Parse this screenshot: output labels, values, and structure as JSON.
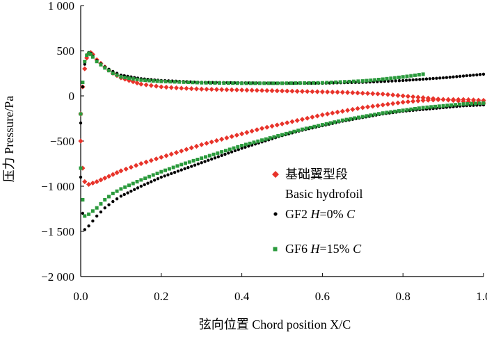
{
  "chart_data": {
    "type": "scatter",
    "xlabel": "弦向位置 Chord position X/C",
    "ylabel": "压力 Pressure/Pa",
    "xlim": [
      0.0,
      1.0
    ],
    "ylim": [
      -2000,
      1000
    ],
    "x_ticks": [
      0.0,
      0.2,
      0.4,
      0.6,
      0.8,
      1.0
    ],
    "x_tick_labels": [
      "0.0",
      "0.2",
      "0.4",
      "0.6",
      "0.8",
      "1.0"
    ],
    "y_ticks": [
      1000,
      500,
      0,
      -500,
      -1000,
      -1500,
      -2000
    ],
    "y_tick_labels": [
      "1 000",
      "500",
      "0",
      "−500",
      "−1 000",
      "−1 500",
      "−2 000"
    ],
    "legend_position": "right",
    "series": [
      {
        "name": "基础翼型段",
        "name_en": "Basic hydrofoil",
        "marker": "diamond",
        "color": "#e8332a",
        "upper": [
          [
            0.0,
            -200
          ],
          [
            0.005,
            100
          ],
          [
            0.01,
            300
          ],
          [
            0.015,
            420
          ],
          [
            0.02,
            470
          ],
          [
            0.025,
            480
          ],
          [
            0.03,
            460
          ],
          [
            0.04,
            400
          ],
          [
            0.06,
            320
          ],
          [
            0.08,
            250
          ],
          [
            0.1,
            200
          ],
          [
            0.12,
            170
          ],
          [
            0.15,
            130
          ],
          [
            0.2,
            100
          ],
          [
            0.25,
            85
          ],
          [
            0.3,
            75
          ],
          [
            0.35,
            70
          ],
          [
            0.4,
            65
          ],
          [
            0.45,
            60
          ],
          [
            0.5,
            55
          ],
          [
            0.55,
            50
          ],
          [
            0.6,
            45
          ],
          [
            0.65,
            40
          ],
          [
            0.7,
            30
          ],
          [
            0.75,
            20
          ],
          [
            0.8,
            0
          ],
          [
            0.85,
            -20
          ],
          [
            0.9,
            -40
          ],
          [
            0.95,
            -60
          ],
          [
            1.0,
            -80
          ]
        ],
        "lower": [
          [
            0.0,
            -500
          ],
          [
            0.005,
            -800
          ],
          [
            0.01,
            -950
          ],
          [
            0.02,
            -980
          ],
          [
            0.04,
            -950
          ],
          [
            0.06,
            -910
          ],
          [
            0.08,
            -870
          ],
          [
            0.1,
            -830
          ],
          [
            0.15,
            -750
          ],
          [
            0.2,
            -680
          ],
          [
            0.25,
            -610
          ],
          [
            0.3,
            -540
          ],
          [
            0.35,
            -480
          ],
          [
            0.4,
            -420
          ],
          [
            0.45,
            -360
          ],
          [
            0.5,
            -310
          ],
          [
            0.55,
            -260
          ],
          [
            0.6,
            -210
          ],
          [
            0.65,
            -170
          ],
          [
            0.7,
            -130
          ],
          [
            0.75,
            -100
          ],
          [
            0.8,
            -70
          ],
          [
            0.85,
            -50
          ],
          [
            0.9,
            -40
          ],
          [
            0.95,
            -40
          ],
          [
            1.0,
            -50
          ]
        ]
      },
      {
        "name": "GF2",
        "name_math": "H=0% C",
        "marker": "circle",
        "color": "#000000",
        "upper": [
          [
            0.0,
            -300
          ],
          [
            0.005,
            100
          ],
          [
            0.01,
            350
          ],
          [
            0.015,
            450
          ],
          [
            0.02,
            480
          ],
          [
            0.025,
            470
          ],
          [
            0.03,
            440
          ],
          [
            0.04,
            390
          ],
          [
            0.06,
            320
          ],
          [
            0.08,
            270
          ],
          [
            0.1,
            230
          ],
          [
            0.15,
            190
          ],
          [
            0.2,
            170
          ],
          [
            0.3,
            150
          ],
          [
            0.4,
            145
          ],
          [
            0.5,
            140
          ],
          [
            0.6,
            140
          ],
          [
            0.7,
            150
          ],
          [
            0.8,
            170
          ],
          [
            0.85,
            185
          ],
          [
            0.9,
            200
          ],
          [
            0.95,
            220
          ],
          [
            1.0,
            240
          ]
        ],
        "lower": [
          [
            0.0,
            -900
          ],
          [
            0.005,
            -1300
          ],
          [
            0.01,
            -1480
          ],
          [
            0.02,
            -1440
          ],
          [
            0.04,
            -1330
          ],
          [
            0.06,
            -1240
          ],
          [
            0.08,
            -1170
          ],
          [
            0.1,
            -1110
          ],
          [
            0.15,
            -1000
          ],
          [
            0.2,
            -900
          ],
          [
            0.25,
            -820
          ],
          [
            0.3,
            -740
          ],
          [
            0.35,
            -660
          ],
          [
            0.4,
            -580
          ],
          [
            0.45,
            -510
          ],
          [
            0.5,
            -440
          ],
          [
            0.55,
            -380
          ],
          [
            0.6,
            -330
          ],
          [
            0.65,
            -280
          ],
          [
            0.7,
            -240
          ],
          [
            0.75,
            -200
          ],
          [
            0.8,
            -170
          ],
          [
            0.85,
            -150
          ],
          [
            0.9,
            -130
          ],
          [
            0.95,
            -110
          ],
          [
            1.0,
            -100
          ]
        ]
      },
      {
        "name": "GF6",
        "name_math": "H=15% C",
        "marker": "square",
        "color": "#2a9a3c",
        "upper": [
          [
            0.0,
            -200
          ],
          [
            0.005,
            150
          ],
          [
            0.01,
            380
          ],
          [
            0.015,
            450
          ],
          [
            0.02,
            470
          ],
          [
            0.025,
            460
          ],
          [
            0.03,
            430
          ],
          [
            0.04,
            380
          ],
          [
            0.06,
            310
          ],
          [
            0.08,
            250
          ],
          [
            0.1,
            210
          ],
          [
            0.15,
            175
          ],
          [
            0.2,
            160
          ],
          [
            0.3,
            145
          ],
          [
            0.4,
            140
          ],
          [
            0.5,
            140
          ],
          [
            0.6,
            145
          ],
          [
            0.7,
            165
          ],
          [
            0.75,
            185
          ],
          [
            0.8,
            210
          ],
          [
            0.85,
            240
          ]
        ],
        "lower": [
          [
            0.0,
            -800
          ],
          [
            0.005,
            -1150
          ],
          [
            0.01,
            -1330
          ],
          [
            0.02,
            -1310
          ],
          [
            0.04,
            -1240
          ],
          [
            0.06,
            -1150
          ],
          [
            0.08,
            -1080
          ],
          [
            0.1,
            -1030
          ],
          [
            0.15,
            -930
          ],
          [
            0.2,
            -840
          ],
          [
            0.25,
            -760
          ],
          [
            0.3,
            -690
          ],
          [
            0.35,
            -620
          ],
          [
            0.4,
            -550
          ],
          [
            0.45,
            -490
          ],
          [
            0.5,
            -430
          ],
          [
            0.55,
            -370
          ],
          [
            0.6,
            -320
          ],
          [
            0.65,
            -270
          ],
          [
            0.7,
            -230
          ],
          [
            0.75,
            -190
          ],
          [
            0.8,
            -160
          ],
          [
            0.85,
            -130
          ],
          [
            0.9,
            -110
          ],
          [
            0.95,
            -90
          ],
          [
            1.0,
            -80
          ]
        ]
      }
    ],
    "legend": {
      "basic_cn": "基础翼型段",
      "basic_en": "Basic hydrofoil",
      "gf2_name": "GF2",
      "gf2_h": "H",
      "gf2_eq": "=0%",
      "gf2_c": "C",
      "gf6_name": "GF6",
      "gf6_h": "H",
      "gf6_eq": "=15%",
      "gf6_c": "C"
    }
  }
}
